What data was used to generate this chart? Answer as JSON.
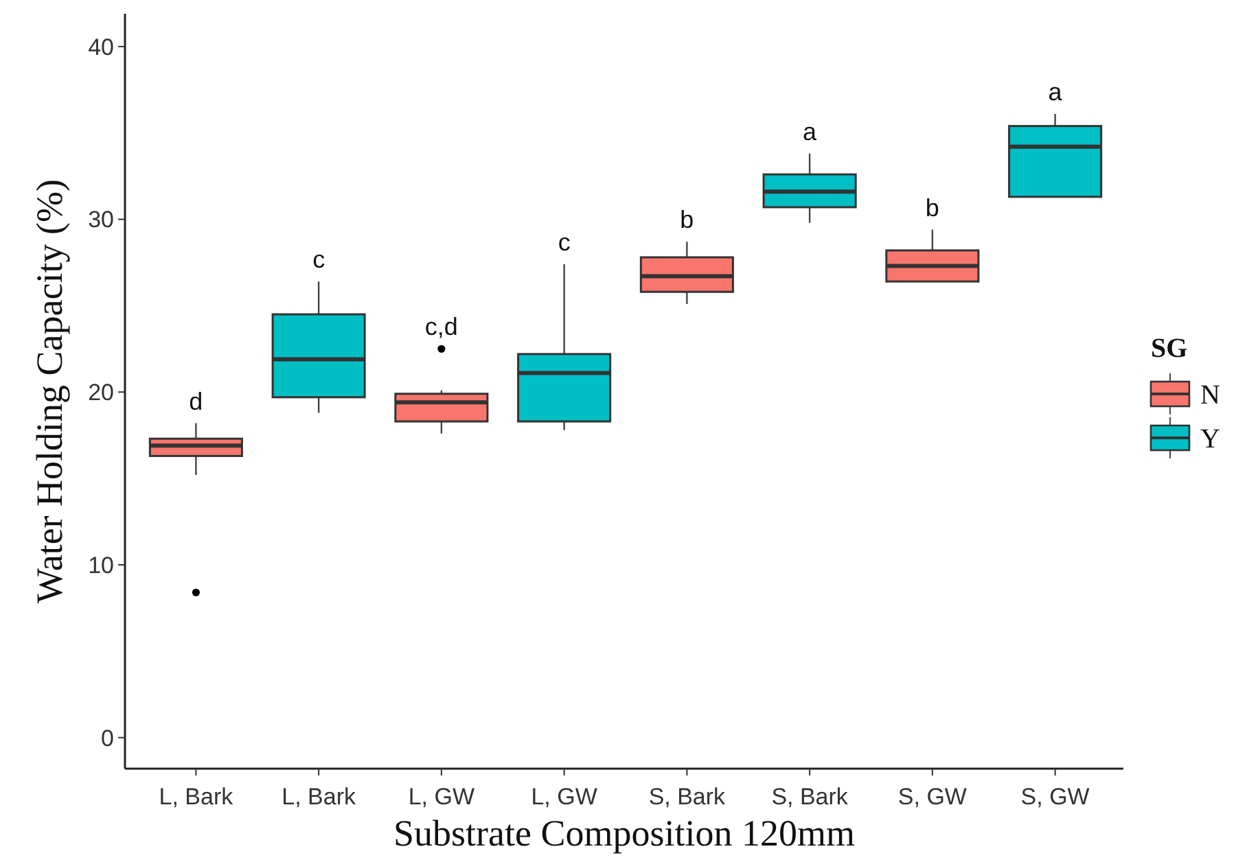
{
  "chart_data": {
    "type": "box",
    "xlabel": "Substrate Composition 120mm",
    "ylabel": "Water Holding Capacity (%)",
    "legend_title": "SG",
    "legend": "right",
    "grid": false,
    "categories": [
      "L, Bark",
      "L, Bark",
      "L, GW",
      "L, GW",
      "S, Bark",
      "S, Bark",
      "S, GW",
      "S, GW"
    ],
    "ylim": [
      -1.8,
      41.9
    ],
    "yticks": [
      0,
      10,
      20,
      30,
      40
    ],
    "series": [
      {
        "name": "N",
        "color": "#f8766d",
        "boxes": [
          {
            "low": 15.2,
            "q1": 16.3,
            "median": 16.9,
            "q3": 17.3,
            "high": 18.2,
            "outliers": [
              8.4
            ]
          },
          null,
          {
            "low": 17.6,
            "q1": 18.3,
            "median": 19.4,
            "q3": 19.9,
            "high": 20.1,
            "outliers": [
              22.5
            ]
          },
          null,
          {
            "low": 25.1,
            "q1": 25.8,
            "median": 26.7,
            "q3": 27.8,
            "high": 28.7
          },
          null,
          {
            "low": 26.4,
            "q1": 26.4,
            "median": 27.3,
            "q3": 28.2,
            "high": 29.4
          },
          null
        ]
      },
      {
        "name": "Y",
        "color": "#00bfc4",
        "boxes": [
          null,
          {
            "low": 18.8,
            "q1": 19.7,
            "median": 21.9,
            "q3": 24.5,
            "high": 26.4
          },
          null,
          {
            "low": 17.8,
            "q1": 18.3,
            "median": 21.1,
            "q3": 22.2,
            "high": 27.4
          },
          null,
          {
            "low": 29.8,
            "q1": 30.7,
            "median": 31.6,
            "q3": 32.6,
            "high": 33.8
          },
          null,
          {
            "low": 31.3,
            "q1": 31.3,
            "median": 34.2,
            "q3": 35.4,
            "high": 36.1
          }
        ]
      }
    ],
    "annotations": [
      "d",
      "c",
      "c,d",
      "c",
      "b",
      "a",
      "b",
      "a"
    ]
  }
}
